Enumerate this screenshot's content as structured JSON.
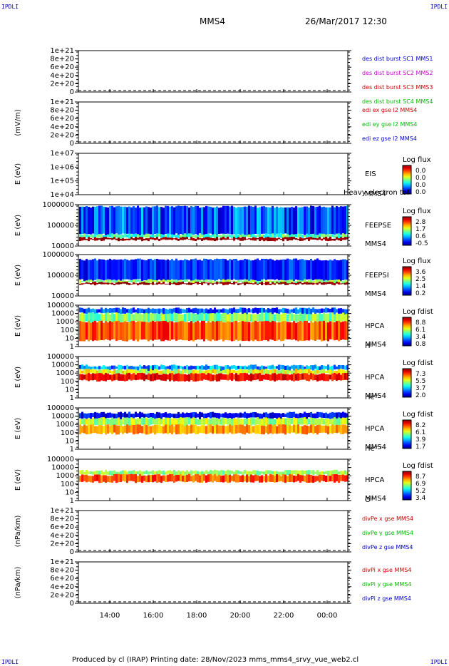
{
  "corners": {
    "tl": "IPDLI",
    "tr": "IPDLI",
    "bl": "IPDLI",
    "br": "IPDLI"
  },
  "header": {
    "title": "MMS4",
    "date": "26/Mar/2017 12:30"
  },
  "footer": {
    "text": "Produced by cl (IRAP)   Printing date: 28/Nov/2023   mms_mms4_srvy_vue_web2.cl"
  },
  "chart_data": {
    "type": "heatmap",
    "xaxis": {
      "ticks": [
        "14:00",
        "16:00",
        "18:00",
        "20:00",
        "22:00",
        "00:00"
      ],
      "range": [
        "12:30",
        "01:00"
      ]
    },
    "panels": [
      {
        "kind": "line",
        "ylabel": "",
        "yticks": [
          "1e+21",
          "8e+20",
          "6e+20",
          "4e+20",
          "2e+20",
          "0"
        ],
        "legend": [
          {
            "text": "des dist burst SC1 MMS1",
            "color": "#0000cc"
          },
          {
            "text": "des dist burst SC2 MMS2",
            "color": "#cc00cc"
          },
          {
            "text": "des dist burst SC3 MMS3",
            "color": "#cc0000"
          },
          {
            "text": "des dist burst SC4 MMS4",
            "color": "#00bb00"
          }
        ]
      },
      {
        "kind": "line",
        "ylabel": "(mV/m)",
        "yticks": [
          "1e+21",
          "8e+20",
          "6e+20",
          "4e+20",
          "2e+20",
          "0"
        ],
        "legend": [
          {
            "text": "edi ex gse l2 MMS4",
            "color": "#cc0000"
          },
          {
            "text": "edi ey gse l2 MMS4",
            "color": "#00bb00"
          },
          {
            "text": "edi ez gse l2 MMS4",
            "color": "#0000cc"
          }
        ]
      },
      {
        "kind": "spec",
        "ylabel": "E (eV)",
        "yticks": [
          "1e+07",
          "1e+06",
          "1e+05",
          "1e+04"
        ],
        "labels": [
          "EIS",
          "Heavy electron tof",
          "MMS4"
        ],
        "cbtitle": "Log flux",
        "cbticks": [
          "0.0",
          "0.0",
          "0.0",
          "0.0"
        ]
      },
      {
        "kind": "spec",
        "ylabel": "E (eV)",
        "yticks": [
          "1000000",
          "100000",
          "10000"
        ],
        "labels": [
          "FEEPSE",
          "MMS4"
        ],
        "cbtitle": "Log flux",
        "cbticks": [
          "2.8",
          "1.7",
          "0.6",
          "-0.5"
        ]
      },
      {
        "kind": "spec",
        "ylabel": "E (eV)",
        "yticks": [
          "1000000",
          "100000",
          "10000"
        ],
        "labels": [
          "FEEPSI",
          "MMS4"
        ],
        "cbtitle": "Log flux",
        "cbticks": [
          "3.6",
          "2.5",
          "1.4",
          "0.2"
        ]
      },
      {
        "kind": "spec",
        "ylabel": "E (eV)",
        "yticks": [
          "100000",
          "10000",
          "1000",
          "100",
          "10",
          "1"
        ],
        "labels": [
          "HPCA",
          "MMS4",
          "H⁺"
        ],
        "cbtitle": "Log fdist",
        "cbticks": [
          "8.8",
          "6.1",
          "3.4",
          "0.8"
        ]
      },
      {
        "kind": "spec",
        "ylabel": "E (eV)",
        "yticks": [
          "100000",
          "10000",
          "1000",
          "100",
          "10",
          "1"
        ],
        "labels": [
          "HPCA",
          "MMS4",
          "He⁺"
        ],
        "cbtitle": "Log fdist",
        "cbticks": [
          "7.3",
          "5.5",
          "3.7",
          "2.0"
        ]
      },
      {
        "kind": "spec",
        "ylabel": "E (eV)",
        "yticks": [
          "100000",
          "10000",
          "1000",
          "100",
          "10",
          "1"
        ],
        "labels": [
          "HPCA",
          "MMS4",
          "He⁺⁺"
        ],
        "cbtitle": "Log fdist",
        "cbticks": [
          "8.2",
          "6.1",
          "3.9",
          "1.7"
        ]
      },
      {
        "kind": "spec",
        "ylabel": "E (eV)",
        "yticks": [
          "100000",
          "10000",
          "1000",
          "100",
          "10",
          "1"
        ],
        "labels": [
          "HPCA",
          "MMS4",
          "O⁺"
        ],
        "cbtitle": "Log fdist",
        "cbticks": [
          "8.7",
          "6.9",
          "5.2",
          "3.4"
        ]
      },
      {
        "kind": "line",
        "ylabel": "(nPa/km)",
        "yticks": [
          "1e+21",
          "8e+20",
          "6e+20",
          "4e+20",
          "2e+20",
          "0"
        ],
        "legend": [
          {
            "text": "divPe x gse MMS4",
            "color": "#cc0000"
          },
          {
            "text": "divPe y gse MMS4",
            "color": "#00bb00"
          },
          {
            "text": "divPe z gse MMS4",
            "color": "#0000cc"
          }
        ]
      },
      {
        "kind": "line",
        "ylabel": "(nPa/km)",
        "yticks": [
          "1e+21",
          "8e+20",
          "6e+20",
          "4e+20",
          "2e+20",
          "0"
        ],
        "legend": [
          {
            "text": "divPi x gse MMS4",
            "color": "#cc0000"
          },
          {
            "text": "divPi y gse MMS4",
            "color": "#00bb00"
          },
          {
            "text": "divPi z gse MMS4",
            "color": "#0000cc"
          }
        ]
      }
    ]
  }
}
